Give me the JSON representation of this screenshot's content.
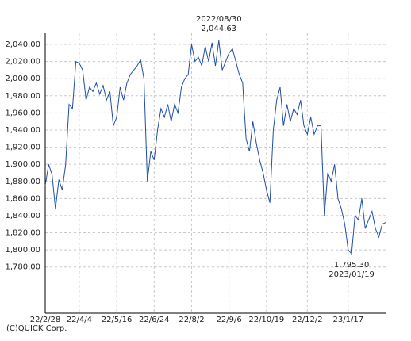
{
  "chart_data": {
    "type": "line",
    "categories": [
      "22/2/28",
      null,
      null,
      null,
      null,
      null,
      null,
      null,
      null,
      null,
      "22/4/4",
      null,
      null,
      null,
      null,
      null,
      null,
      null,
      null,
      null,
      null,
      "22/5/16",
      null,
      null,
      null,
      null,
      null,
      null,
      null,
      null,
      null,
      null,
      "22/6/24",
      null,
      null,
      null,
      null,
      null,
      null,
      null,
      null,
      null,
      null,
      "22/8/2",
      null,
      null,
      null,
      null,
      null,
      null,
      null,
      null,
      null,
      null,
      "22/9/6",
      null,
      null,
      null,
      null,
      null,
      null,
      null,
      null,
      null,
      null,
      "22/10/19",
      null,
      null,
      null,
      null,
      null,
      null,
      null,
      null,
      null,
      null,
      null,
      "22/12/2",
      null,
      null,
      null,
      null,
      null,
      null,
      null,
      null,
      null,
      null,
      null,
      "23/1/17",
      null,
      null,
      null,
      null,
      null,
      null,
      null,
      null,
      null,
      null,
      null
    ],
    "series": [
      {
        "color": "#1f4ea8",
        "values": [
          1875,
          1900,
          1888,
          1848,
          1882,
          1870,
          1900,
          1970,
          1965,
          2020,
          2018,
          2010,
          1975,
          1990,
          1985,
          1995,
          1982,
          1992,
          1975,
          1985,
          1945,
          1955,
          1990,
          1975,
          1995,
          2005,
          2010,
          2015,
          2022,
          2000,
          1880,
          1915,
          1905,
          1940,
          1965,
          1955,
          1970,
          1950,
          1970,
          1960,
          1990,
          2000,
          2005,
          2040,
          2020,
          2025,
          2015,
          2038,
          2020,
          2042,
          2015,
          2044.63,
          2010,
          2020,
          2030,
          2035,
          2020,
          2005,
          1995,
          1930,
          1915,
          1950,
          1925,
          1905,
          1890,
          1870,
          1855,
          1940,
          1975,
          1990,
          1945,
          1970,
          1950,
          1965,
          1958,
          1975,
          1945,
          1935,
          1955,
          1935,
          1945,
          1945,
          1840,
          1890,
          1880,
          1900,
          1860,
          1848,
          1830,
          1800,
          1795.3,
          1840,
          1835,
          1860,
          1825,
          1835,
          1845,
          1825,
          1815,
          1830,
          1832
        ]
      }
    ],
    "ylim": [
      1726,
      2053
    ],
    "yticks": [
      {
        "value": 1780,
        "label": "1,780.00"
      },
      {
        "value": 1800,
        "label": "1,800.00"
      },
      {
        "value": 1820,
        "label": "1,820.00"
      },
      {
        "value": 1840,
        "label": "1,840.00"
      },
      {
        "value": 1860,
        "label": "1,860.00"
      },
      {
        "value": 1880,
        "label": "1,880.00"
      },
      {
        "value": 1900,
        "label": "1,900.00"
      },
      {
        "value": 1920,
        "label": "1,920.00"
      },
      {
        "value": 1940,
        "label": "1,940.00"
      },
      {
        "value": 1960,
        "label": "1,960.00"
      },
      {
        "value": 1980,
        "label": "1,980.00"
      },
      {
        "value": 2000,
        "label": "2,000.00"
      },
      {
        "value": 2020,
        "label": "2,020.00"
      },
      {
        "value": 2040,
        "label": "2,040.00"
      }
    ],
    "grid": true,
    "max_annotation": {
      "date": "2022/08/30",
      "value": "2,044.63"
    },
    "min_annotation": {
      "value": "1,795.30",
      "date": "2023/01/19"
    },
    "credit": "(C)QUICK Corp."
  }
}
